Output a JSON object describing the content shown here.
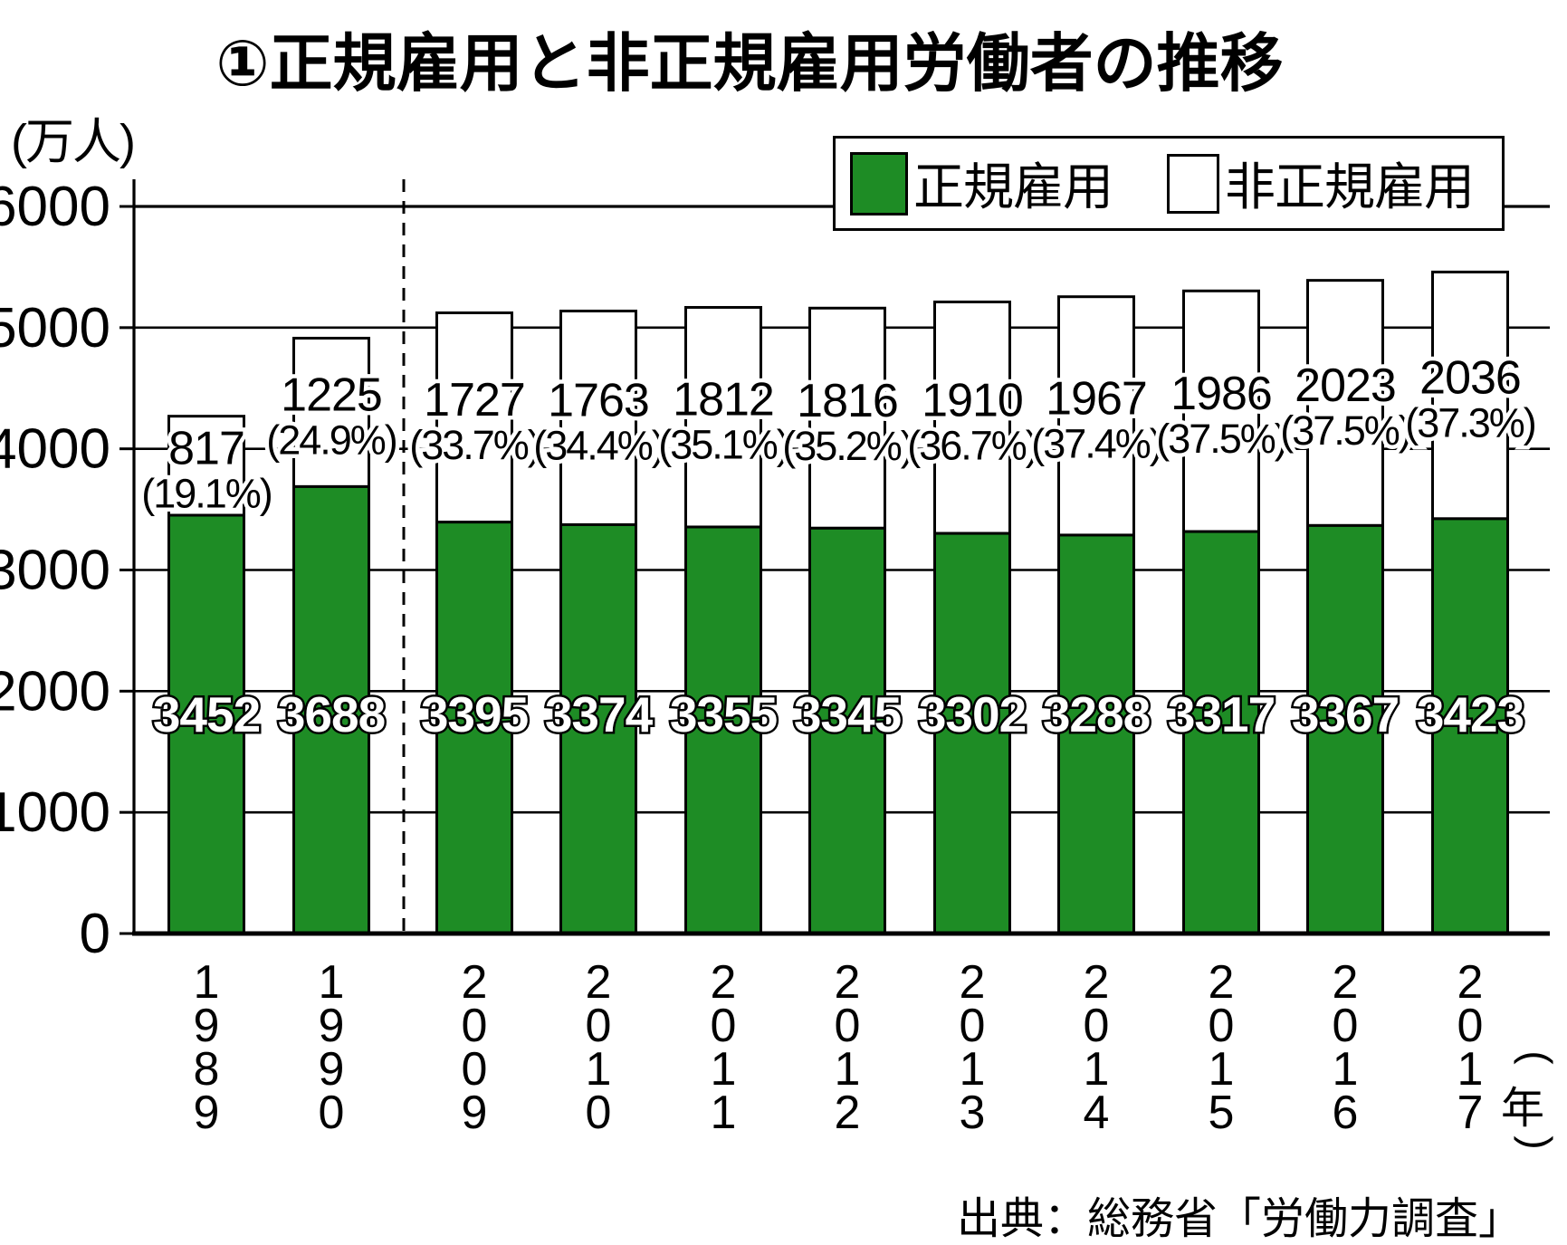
{
  "title": "①正規雇用と非正規雇用労働者の推移",
  "unit_label": "(万人)",
  "legend": {
    "regular": "正規雇用",
    "nonregular": "非正規雇用"
  },
  "source": "出典：総務省「労働力調査」",
  "colors": {
    "regular_green": "#1e8c25",
    "nonregular_white": "#ffffff",
    "line_black": "#000000"
  },
  "chart_data": {
    "type": "bar",
    "stacked": true,
    "title": "①正規雇用と非正規雇用労働者の推移",
    "ylabel": "(万人)",
    "x_axis_unit": "年",
    "categories": [
      "1989",
      "1990",
      "2009",
      "2010",
      "2011",
      "2012",
      "2013",
      "2014",
      "2015",
      "2016",
      "2017"
    ],
    "series": [
      {
        "name": "正規雇用",
        "values": [
          3452,
          3688,
          3395,
          3374,
          3355,
          3345,
          3302,
          3288,
          3317,
          3367,
          3423
        ]
      },
      {
        "name": "非正規雇用",
        "values": [
          817,
          1225,
          1727,
          1763,
          1812,
          1816,
          1910,
          1967,
          1986,
          2023,
          2036
        ],
        "percent_labels": [
          "(19.1%)",
          "(24.9%)",
          "(33.7%)",
          "(34.4%)",
          "(35.1%)",
          "(35.2%)",
          "(36.7%)",
          "(37.4%)",
          "(37.5%)",
          "(37.5%)",
          "(37.3%)"
        ]
      }
    ],
    "ylim": [
      0,
      6000
    ],
    "yticks": [
      0,
      1000,
      2000,
      3000,
      4000,
      5000,
      6000
    ],
    "grid": true,
    "axis_break_after_index": 1,
    "legend_position": "top-right"
  }
}
